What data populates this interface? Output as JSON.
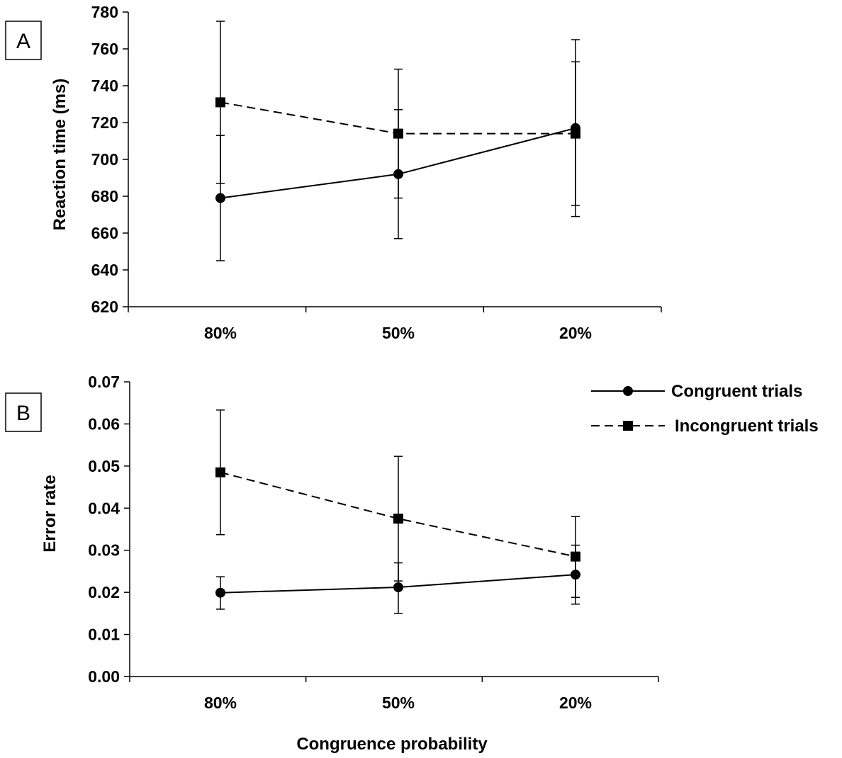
{
  "chart_data": [
    {
      "type": "line",
      "panel_label": "A",
      "categories": [
        "80%",
        "50%",
        "20%"
      ],
      "xlabel": "",
      "ylabel": "Reaction time (ms)",
      "ylim": [
        620,
        780
      ],
      "yticks": [
        "620",
        "640",
        "660",
        "680",
        "700",
        "720",
        "740",
        "760",
        "780"
      ],
      "grid": false,
      "series": [
        {
          "name": "Congruent trials",
          "marker": "circle",
          "line": "solid",
          "values": [
            679,
            692,
            717
          ],
          "error_low": [
            645,
            657,
            669
          ],
          "error_high": [
            713,
            727,
            765
          ]
        },
        {
          "name": "Incongruent trials",
          "marker": "square",
          "line": "dashed",
          "values": [
            731,
            714,
            714
          ],
          "error_low": [
            687,
            679,
            675
          ],
          "error_high": [
            775,
            749,
            753
          ]
        }
      ]
    },
    {
      "type": "line",
      "panel_label": "B",
      "categories": [
        "80%",
        "50%",
        "20%"
      ],
      "xlabel": "Congruence probability",
      "ylabel": "Error rate",
      "ylim": [
        0,
        0.07
      ],
      "yticks": [
        "0.00",
        "0.01",
        "0.02",
        "0.03",
        "0.04",
        "0.05",
        "0.06",
        "0.07"
      ],
      "grid": false,
      "legend_position": "top-right",
      "series": [
        {
          "name": "Congruent trials",
          "marker": "circle",
          "line": "solid",
          "values": [
            0.0199,
            0.0212,
            0.0242
          ],
          "error_low": [
            0.016,
            0.015,
            0.0172
          ],
          "error_high": [
            0.0237,
            0.027,
            0.0312
          ]
        },
        {
          "name": "Incongruent trials",
          "marker": "square",
          "line": "dashed",
          "values": [
            0.0485,
            0.0375,
            0.0285
          ],
          "error_low": [
            0.0337,
            0.0227,
            0.0188
          ],
          "error_high": [
            0.0633,
            0.0523,
            0.038
          ]
        }
      ]
    }
  ]
}
